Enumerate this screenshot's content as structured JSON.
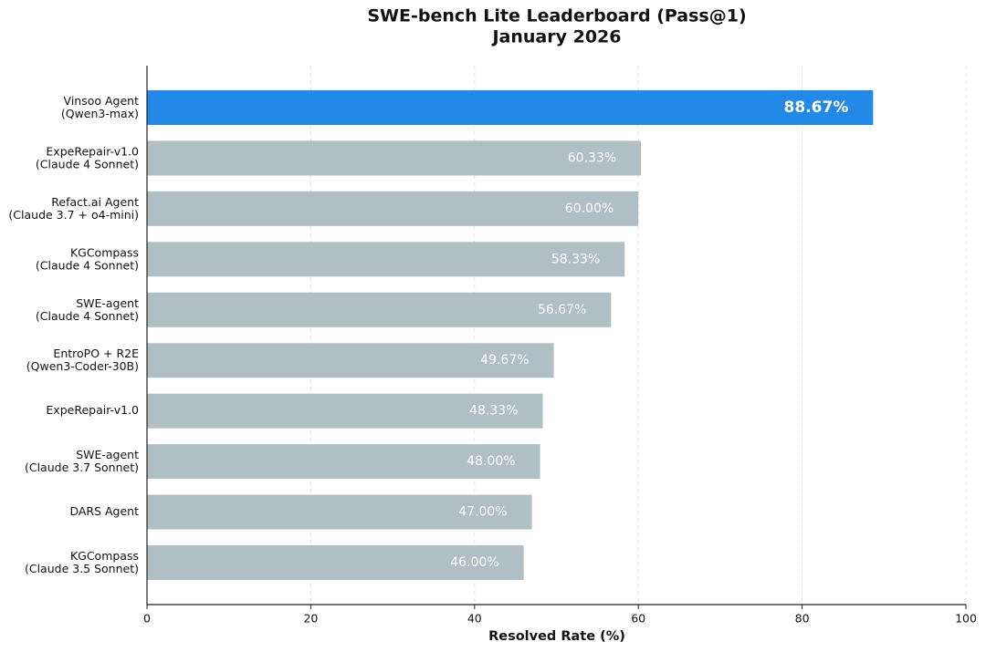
{
  "chart_data": {
    "type": "barh",
    "title": "SWE-bench Lite Leaderboard (Pass@1)",
    "subtitle": "January 2026",
    "x_label": "Resolved Rate (%)",
    "categories": [
      "Vinsoo Agent\n(Qwen3-max)",
      "ExpeRepair-v1.0\n(Claude 4 Sonnet)",
      "Refact.ai Agent\n(Claude 3.7 + o4-mini)",
      "KGCompass\n(Claude 4 Sonnet)",
      "SWE-agent\n(Claude 4 Sonnet)",
      "EntroPO + R2E\n(Qwen3-Coder-30B)",
      "ExpeRepair-v1.0",
      "SWE-agent\n(Claude 3.7 Sonnet)",
      "DARS Agent",
      "KGCompass\n(Claude 3.5 Sonnet)"
    ],
    "values": [
      88.67,
      60.33,
      60.0,
      58.33,
      56.67,
      49.67,
      48.33,
      48.0,
      47.0,
      46.0
    ],
    "value_labels": [
      "88.67%",
      "60.33%",
      "60.00%",
      "58.33%",
      "56.67%",
      "49.67%",
      "48.33%",
      "48.00%",
      "47.00%",
      "46.00%"
    ],
    "colors": [
      "#2389e6",
      "#b0bec5",
      "#b0bec5",
      "#b0bec5",
      "#b0bec5",
      "#b0bec5",
      "#b0bec5",
      "#b0bec5",
      "#b0bec5",
      "#b0bec5"
    ],
    "xlim": [
      0,
      100
    ],
    "xticks": [
      0,
      20,
      40,
      60,
      80,
      100
    ],
    "grid": true
  }
}
